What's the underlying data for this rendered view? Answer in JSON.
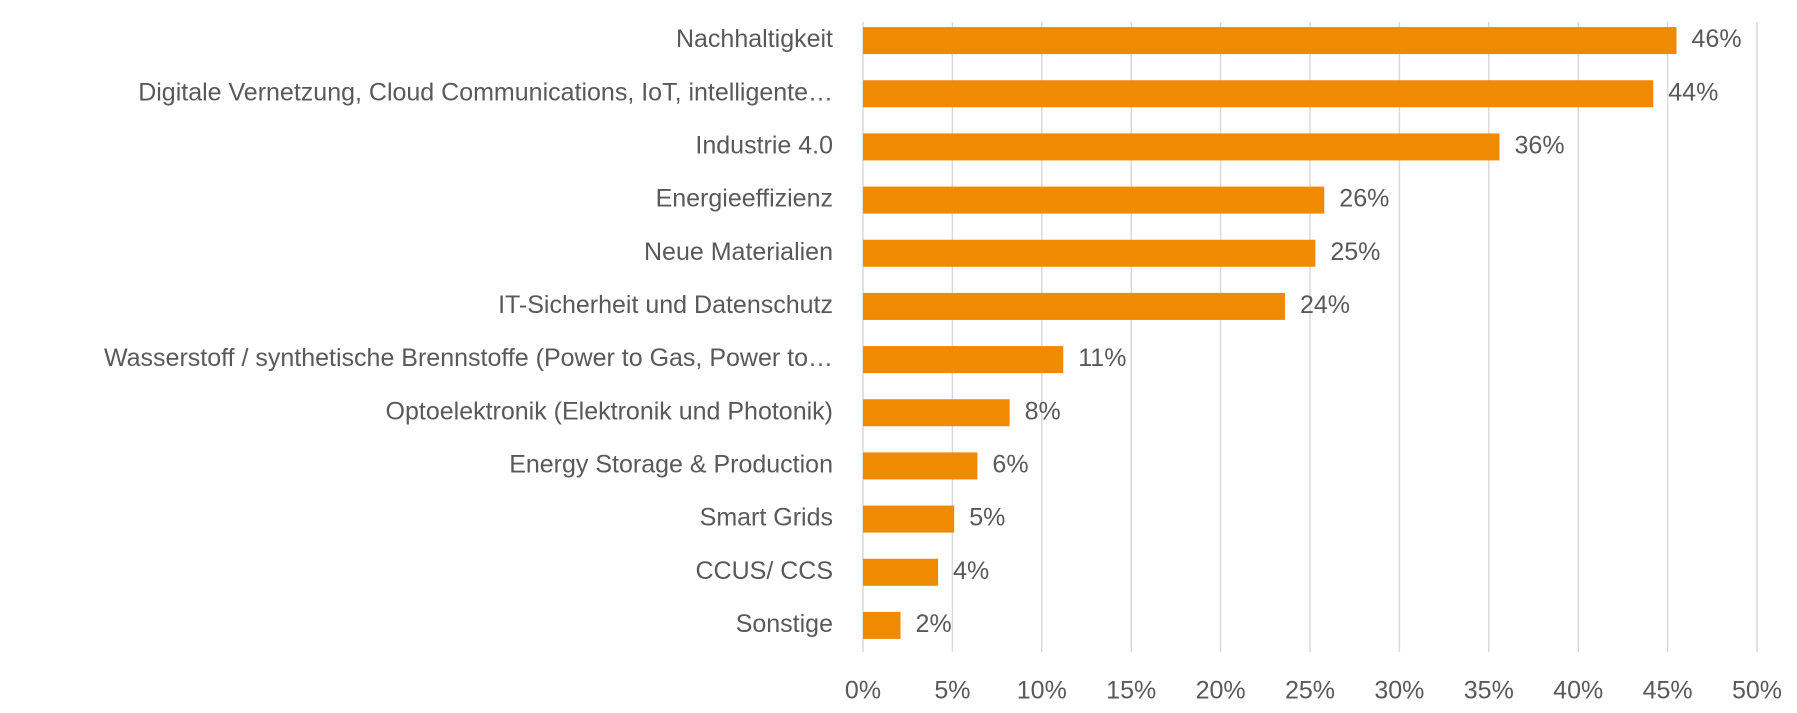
{
  "chart_data": {
    "type": "barh",
    "categories": [
      "Nachhaltigkeit",
      "Digitale Vernetzung, Cloud Communications, IoT, intelligente…",
      "Industrie 4.0",
      "Energieeffizienz",
      "Neue Materialien",
      "IT-Sicherheit und Datenschutz",
      "Wasserstoff / synthetische Brennstoffe (Power to Gas, Power to…",
      "Optoelektronik (Elektronik und Photonik)",
      "Energy Storage & Production",
      "Smart Grids",
      "CCUS/ CCS",
      "Sonstige"
    ],
    "values": [
      45.5,
      44.2,
      35.6,
      25.8,
      25.3,
      23.6,
      11.2,
      8.2,
      6.4,
      5.1,
      4.2,
      2.1
    ],
    "value_labels": [
      "46%",
      "44%",
      "36%",
      "26%",
      "25%",
      "24%",
      "11%",
      "8%",
      "6%",
      "5%",
      "4%",
      "2%"
    ],
    "color": "#f08a00",
    "xlim": [
      0,
      50
    ],
    "xticks": [
      {
        "value": 0,
        "label": "0%"
      },
      {
        "value": 5,
        "label": "5%"
      },
      {
        "value": 10,
        "label": "10%"
      },
      {
        "value": 15,
        "label": "15%"
      },
      {
        "value": 20,
        "label": "20%"
      },
      {
        "value": 25,
        "label": "25%"
      },
      {
        "value": 30,
        "label": "30%"
      },
      {
        "value": 35,
        "label": "35%"
      },
      {
        "value": 40,
        "label": "40%"
      },
      {
        "value": 45,
        "label": "45%"
      },
      {
        "value": 50,
        "label": "50%"
      }
    ],
    "grid": true
  }
}
